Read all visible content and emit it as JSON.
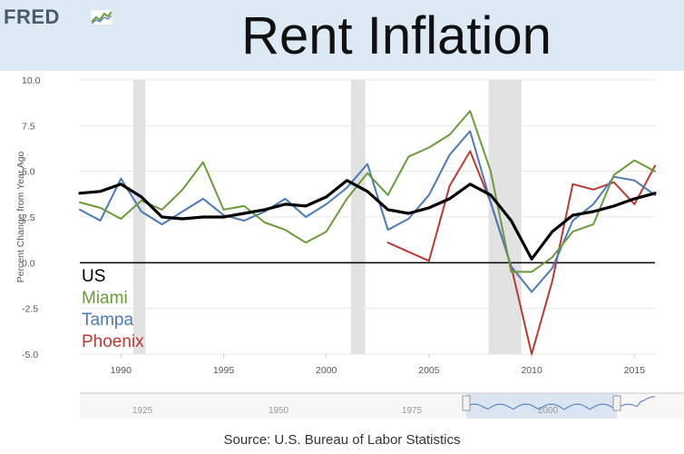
{
  "header": {
    "logo_text": "FRED",
    "title": "Rent Inflation"
  },
  "footer": {
    "source": "Source: U.S. Bureau of Labor Statistics"
  },
  "colors": {
    "US": "#000000",
    "Miami": "#6a9a3a",
    "Tampa": "#4a78b8",
    "Phoenix": "#b83a32",
    "recession": "#e2e2e2",
    "header_bg": "#dde9f5"
  },
  "chart_data": {
    "type": "line",
    "title": "Rent Inflation",
    "ylabel": "Percent Change from Year Ago",
    "xlabel": "",
    "xlim": [
      1988,
      2016
    ],
    "ylim": [
      -5,
      10
    ],
    "x_ticks": [
      "1990",
      "1995",
      "2000",
      "2005",
      "2010",
      "2015"
    ],
    "y_ticks": [
      "10.0",
      "7.5",
      "5.0",
      "2.5",
      "0.0",
      "-2.5",
      "-5.0"
    ],
    "recessions": [
      [
        1990.6,
        1991.2
      ],
      [
        2001.2,
        2001.9
      ],
      [
        2007.9,
        2009.5
      ]
    ],
    "legend": [
      "US",
      "Miami",
      "Tampa",
      "Phoenix"
    ],
    "series": [
      {
        "name": "US",
        "x": [
          1988,
          1989,
          1990,
          1991,
          1992,
          1993,
          1994,
          1995,
          1996,
          1997,
          1998,
          1999,
          2000,
          2001,
          2002,
          2003,
          2004,
          2005,
          2006,
          2007,
          2008,
          2009,
          2010,
          2011,
          2012,
          2013,
          2014,
          2015,
          2016
        ],
        "values": [
          3.8,
          3.9,
          4.3,
          3.6,
          2.5,
          2.4,
          2.5,
          2.5,
          2.7,
          2.9,
          3.2,
          3.1,
          3.6,
          4.5,
          3.9,
          2.9,
          2.7,
          3.0,
          3.5,
          4.3,
          3.7,
          2.3,
          0.2,
          1.7,
          2.6,
          2.8,
          3.1,
          3.5,
          3.8
        ]
      },
      {
        "name": "Miami",
        "x": [
          1988,
          1989,
          1990,
          1991,
          1992,
          1993,
          1994,
          1995,
          1996,
          1997,
          1998,
          1999,
          2000,
          2001,
          2002,
          2003,
          2004,
          2005,
          2006,
          2007,
          2008,
          2009,
          2010,
          2011,
          2012,
          2013,
          2014,
          2015,
          2016
        ],
        "values": [
          3.3,
          3.0,
          2.4,
          3.4,
          2.9,
          4.0,
          5.5,
          2.9,
          3.1,
          2.2,
          1.8,
          1.1,
          1.7,
          3.5,
          4.9,
          3.7,
          5.8,
          6.3,
          7.0,
          8.3,
          5.0,
          -0.5,
          -0.5,
          0.3,
          1.7,
          2.1,
          4.8,
          5.6,
          5.0
        ]
      },
      {
        "name": "Tampa",
        "x": [
          1988,
          1989,
          1990,
          1991,
          1992,
          1993,
          1994,
          1995,
          1996,
          1997,
          1998,
          1999,
          2000,
          2001,
          2002,
          2003,
          2004,
          2005,
          2006,
          2007,
          2008,
          2009,
          2010,
          2011,
          2012,
          2013,
          2014,
          2015,
          2016
        ],
        "values": [
          2.9,
          2.3,
          4.6,
          2.8,
          2.1,
          2.8,
          3.5,
          2.6,
          2.3,
          2.8,
          3.5,
          2.5,
          3.2,
          4.1,
          5.4,
          1.8,
          2.4,
          3.7,
          5.9,
          7.2,
          3.3,
          -0.2,
          -1.6,
          -0.3,
          2.3,
          3.2,
          4.7,
          4.5,
          3.7
        ]
      },
      {
        "name": "Phoenix",
        "x": [
          2003,
          2004,
          2005,
          2006,
          2007,
          2008,
          2009,
          2010,
          2011,
          2012,
          2013,
          2014,
          2015,
          2016
        ],
        "values": [
          1.1,
          0.6,
          0.1,
          4.2,
          6.1,
          3.3,
          -0.2,
          -5.0,
          -1.0,
          4.3,
          4.0,
          4.4,
          3.2,
          5.3
        ]
      }
    ]
  },
  "navigator": {
    "labels": [
      "1925",
      "1950",
      "1975",
      "2000"
    ]
  }
}
